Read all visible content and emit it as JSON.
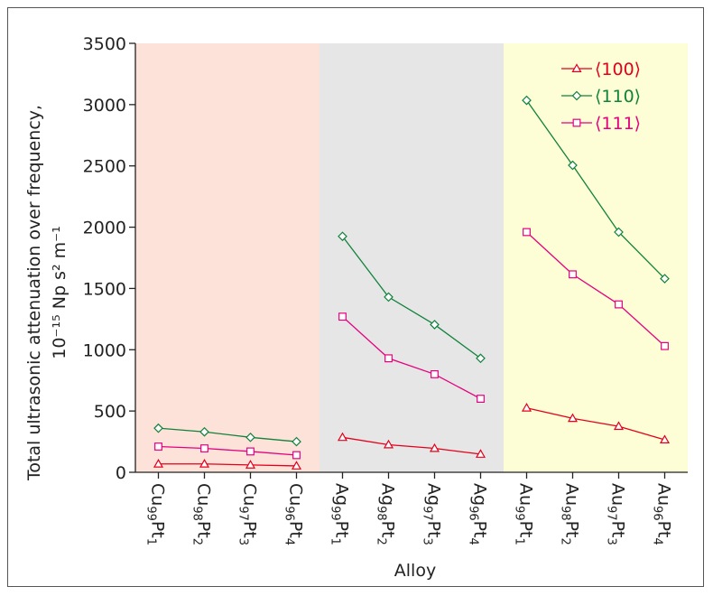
{
  "chart_data": {
    "type": "line",
    "ylabel_line1": "Total ultrasonic attenuation over frequency,",
    "ylabel_line2": "10⁻¹⁵ Np s² m⁻¹",
    "xlabel": "Alloy",
    "ylim": [
      0,
      3500
    ],
    "yticks": [
      0,
      500,
      1000,
      1500,
      2000,
      2500,
      3000,
      3500
    ],
    "legend_position": "top-right",
    "grid": false,
    "groups": [
      {
        "name": "Cu",
        "color": "#fde2d9"
      },
      {
        "name": "Ag",
        "color": "#e6e6e6"
      },
      {
        "name": "Au",
        "color": "#fdfdd6"
      }
    ],
    "categories": [
      {
        "el": "Cu",
        "a": "99",
        "b": "1"
      },
      {
        "el": "Cu",
        "a": "98",
        "b": "2"
      },
      {
        "el": "Cu",
        "a": "97",
        "b": "3"
      },
      {
        "el": "Cu",
        "a": "96",
        "b": "4"
      },
      {
        "el": "Ag",
        "a": "99",
        "b": "1"
      },
      {
        "el": "Ag",
        "a": "98",
        "b": "2"
      },
      {
        "el": "Ag",
        "a": "97",
        "b": "3"
      },
      {
        "el": "Ag",
        "a": "96",
        "b": "4"
      },
      {
        "el": "Au",
        "a": "99",
        "b": "1"
      },
      {
        "el": "Au",
        "a": "98",
        "b": "2"
      },
      {
        "el": "Au",
        "a": "97",
        "b": "3"
      },
      {
        "el": "Au",
        "a": "96",
        "b": "4"
      }
    ],
    "series": [
      {
        "name": "⟨100⟩",
        "marker": "triangle",
        "color": "#e3001b",
        "values": [
          68,
          68,
          60,
          52,
          285,
          225,
          195,
          148,
          525,
          440,
          375,
          265
        ]
      },
      {
        "name": "⟨110⟩",
        "marker": "diamond",
        "color": "#11823b",
        "values": [
          360,
          330,
          285,
          250,
          1925,
          1430,
          1205,
          930,
          3035,
          2505,
          1960,
          1580
        ]
      },
      {
        "name": "⟨111⟩",
        "marker": "square",
        "color": "#e6007e",
        "values": [
          210,
          195,
          170,
          140,
          1270,
          930,
          800,
          600,
          1960,
          1615,
          1370,
          1030
        ]
      }
    ]
  }
}
